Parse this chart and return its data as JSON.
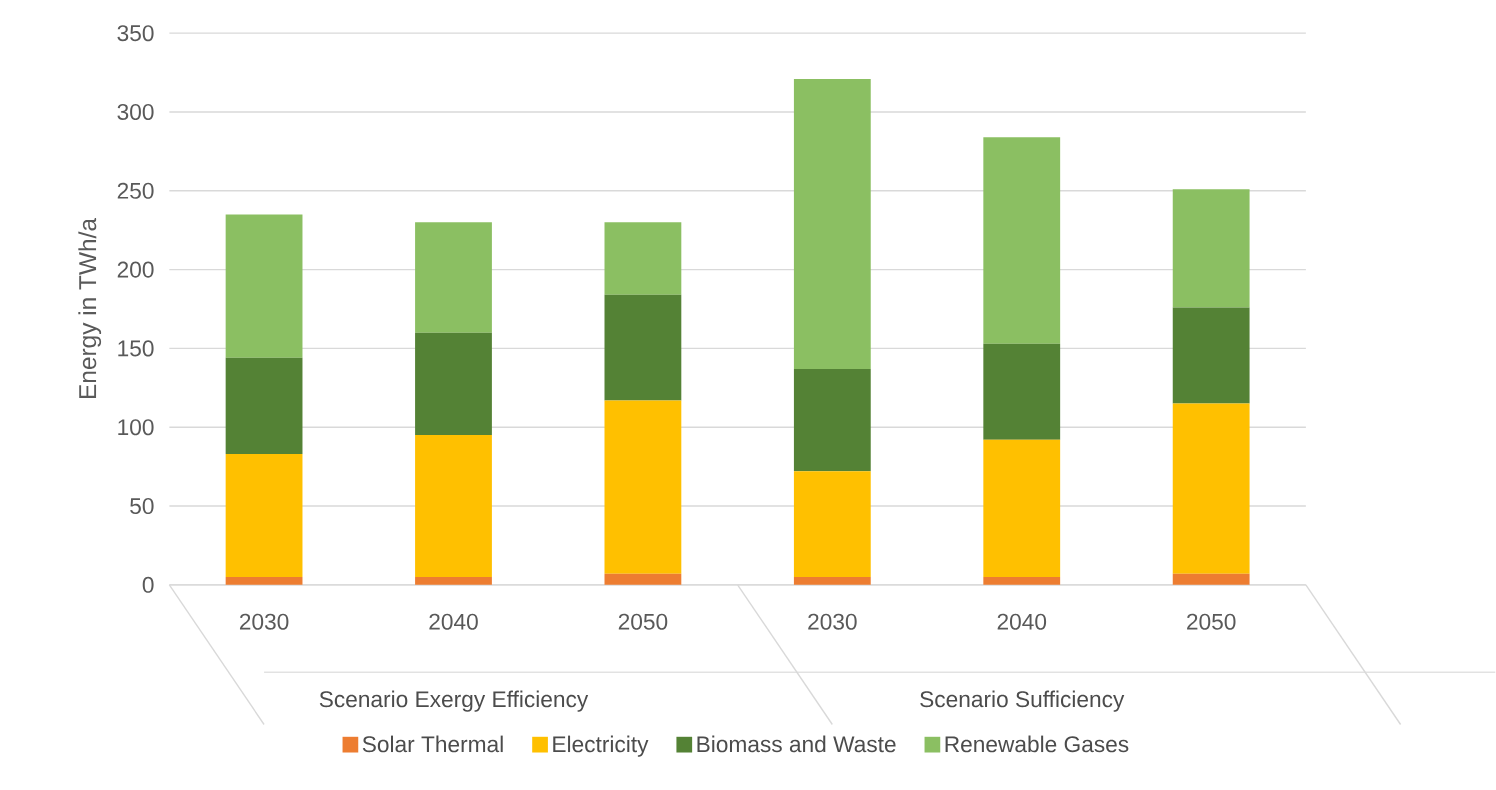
{
  "chart_data": {
    "type": "bar",
    "stacked": true,
    "ylabel": "Energy in TWh/a",
    "categories": [
      "2030",
      "2040",
      "2050",
      "2030",
      "2040",
      "2050"
    ],
    "annotations": [
      "Scenario Exergy Efficiency",
      "Scenario Sufficiency"
    ],
    "series": [
      {
        "name": "Solar Thermal",
        "color": "#ed7d31",
        "values": [
          5,
          5,
          7,
          5,
          5,
          7
        ]
      },
      {
        "name": "Electricity",
        "color": "#ffc000",
        "values": [
          78,
          90,
          110,
          67,
          87,
          108
        ]
      },
      {
        "name": "Biomass and Waste",
        "color": "#548235",
        "values": [
          61,
          65,
          67,
          65,
          61,
          61
        ]
      },
      {
        "name": "Renewable Gases",
        "color": "#8bbf62",
        "values": [
          91,
          70,
          46,
          184,
          131,
          75
        ]
      }
    ],
    "ylim": [
      0,
      350
    ],
    "yticks": [
      0,
      50,
      100,
      150,
      200,
      250,
      300,
      350
    ],
    "grid": "y",
    "legend": "bottom"
  }
}
